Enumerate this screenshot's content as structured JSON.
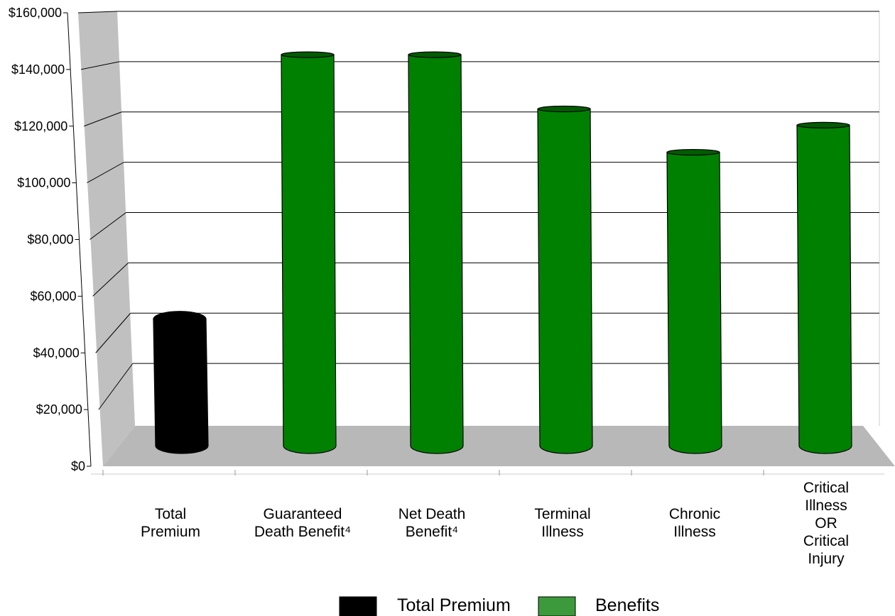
{
  "chart_data": {
    "type": "bar",
    "style": "3d-cylinder",
    "categories": [
      [
        "Total",
        "Premium"
      ],
      [
        "Guaranteed",
        "Death Benefit⁴"
      ],
      [
        "Net Death",
        "Benefit⁴"
      ],
      [
        "Terminal",
        "Illness"
      ],
      [
        "Chronic",
        "Illness"
      ],
      [
        "Critical",
        "Illness",
        "OR",
        "Critical",
        "Injury"
      ]
    ],
    "values": [
      48000,
      144000,
      144000,
      124000,
      108000,
      118000
    ],
    "series_of_bar": [
      0,
      1,
      1,
      1,
      1,
      1
    ],
    "series": [
      {
        "name": "Total Premium",
        "color": "#000000"
      },
      {
        "name": "Benefits",
        "color": "#3c9a3c"
      }
    ],
    "bar_color": "#008000",
    "bar_top_color": "#005c00",
    "premium_bar_color": "#000000",
    "wall_color": "#c0c0c0",
    "floor_color": "#b8b8b8",
    "grid_color": "#000000",
    "title": "",
    "xlabel": "",
    "ylabel": "",
    "ylim": [
      0,
      160000
    ],
    "y_ticks": [
      0,
      20000,
      40000,
      60000,
      80000,
      100000,
      120000,
      140000,
      160000
    ],
    "y_tick_labels": [
      "$0",
      "$20,000",
      "$40,000",
      "$60,000",
      "$80,000",
      "$100,000",
      "$120,000",
      "$140,000",
      "$160,000"
    ],
    "grid": true,
    "legend_position": "bottom-center"
  }
}
